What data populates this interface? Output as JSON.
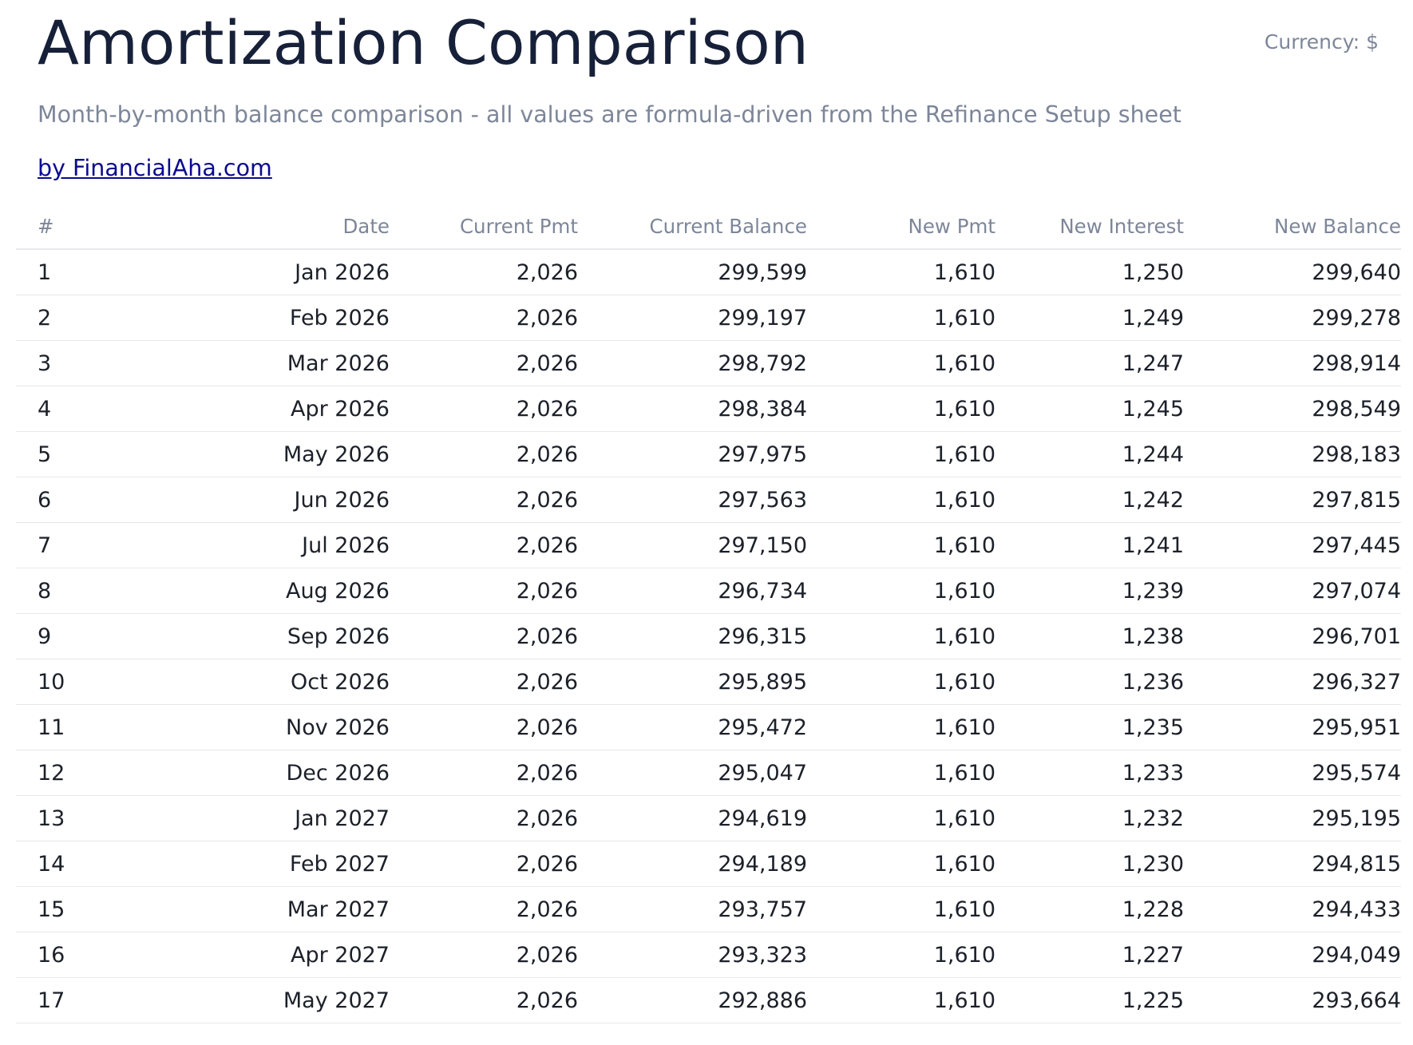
{
  "header": {
    "title": "Amortization Comparison",
    "currency": "Currency: $",
    "subtitle": "Month-by-month balance comparison - all values are formula-driven from the Refinance Setup sheet",
    "credit": "by FinancialAha.com"
  },
  "table": {
    "columns": [
      "#",
      "Date",
      "Current Pmt",
      "Current Balance",
      "New Pmt",
      "New Interest",
      "New Balance"
    ],
    "rows": [
      [
        "1",
        "Jan 2026",
        "2,026",
        "299,599",
        "1,610",
        "1,250",
        "299,640"
      ],
      [
        "2",
        "Feb 2026",
        "2,026",
        "299,197",
        "1,610",
        "1,249",
        "299,278"
      ],
      [
        "3",
        "Mar 2026",
        "2,026",
        "298,792",
        "1,610",
        "1,247",
        "298,914"
      ],
      [
        "4",
        "Apr 2026",
        "2,026",
        "298,384",
        "1,610",
        "1,245",
        "298,549"
      ],
      [
        "5",
        "May 2026",
        "2,026",
        "297,975",
        "1,610",
        "1,244",
        "298,183"
      ],
      [
        "6",
        "Jun 2026",
        "2,026",
        "297,563",
        "1,610",
        "1,242",
        "297,815"
      ],
      [
        "7",
        "Jul 2026",
        "2,026",
        "297,150",
        "1,610",
        "1,241",
        "297,445"
      ],
      [
        "8",
        "Aug 2026",
        "2,026",
        "296,734",
        "1,610",
        "1,239",
        "297,074"
      ],
      [
        "9",
        "Sep 2026",
        "2,026",
        "296,315",
        "1,610",
        "1,238",
        "296,701"
      ],
      [
        "10",
        "Oct 2026",
        "2,026",
        "295,895",
        "1,610",
        "1,236",
        "296,327"
      ],
      [
        "11",
        "Nov 2026",
        "2,026",
        "295,472",
        "1,610",
        "1,235",
        "295,951"
      ],
      [
        "12",
        "Dec 2026",
        "2,026",
        "295,047",
        "1,610",
        "1,233",
        "295,574"
      ],
      [
        "13",
        "Jan 2027",
        "2,026",
        "294,619",
        "1,610",
        "1,232",
        "295,195"
      ],
      [
        "14",
        "Feb 2027",
        "2,026",
        "294,189",
        "1,610",
        "1,230",
        "294,815"
      ],
      [
        "15",
        "Mar 2027",
        "2,026",
        "293,757",
        "1,610",
        "1,228",
        "294,433"
      ],
      [
        "16",
        "Apr 2027",
        "2,026",
        "293,323",
        "1,610",
        "1,227",
        "294,049"
      ],
      [
        "17",
        "May 2027",
        "2,026",
        "292,886",
        "1,610",
        "1,225",
        "293,664"
      ]
    ]
  }
}
